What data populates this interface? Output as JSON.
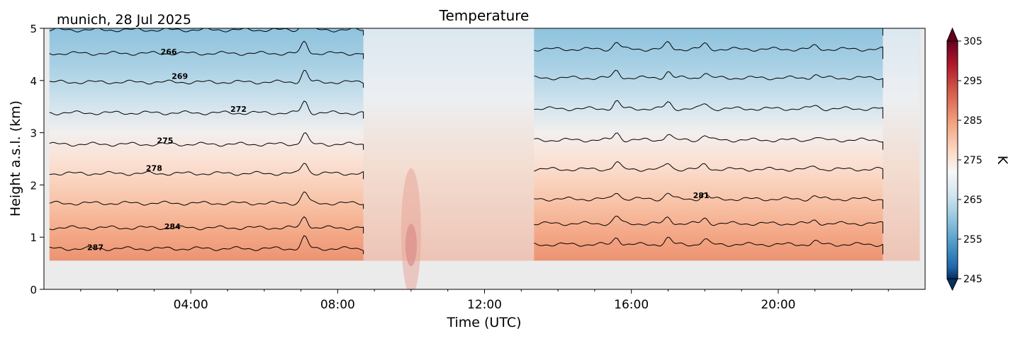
{
  "chart_data": {
    "type": "heatmap",
    "title": "Temperature",
    "subtitle": "munich, 28 Jul 2025",
    "xlabel": "Time (UTC)",
    "ylabel": "Height a.s.l. (km)",
    "x_ticks": [
      "04:00",
      "08:00",
      "12:00",
      "16:00",
      "20:00"
    ],
    "x_tick_hours": [
      4,
      8,
      12,
      16,
      20
    ],
    "xlim_hours": [
      0,
      24
    ],
    "y_ticks": [
      "0",
      "1",
      "2",
      "3",
      "4",
      "5"
    ],
    "ylim_km": [
      0,
      5
    ],
    "data_bottom_km": 0.55,
    "colorbar": {
      "label": "K",
      "ticks": [
        "305",
        "295",
        "285",
        "275",
        "265",
        "255",
        "245"
      ],
      "tick_values": [
        305,
        295,
        285,
        275,
        265,
        255,
        245
      ],
      "range": [
        245,
        305
      ],
      "extend": "both",
      "colormap": "RdBu_r"
    },
    "contour_labels": [
      {
        "value": "266",
        "hour": 3.4,
        "km": 4.5
      },
      {
        "value": "269",
        "hour": 3.7,
        "km": 4.03
      },
      {
        "value": "272",
        "hour": 5.3,
        "km": 3.4
      },
      {
        "value": "275",
        "hour": 3.3,
        "km": 2.8
      },
      {
        "value": "278",
        "hour": 3.0,
        "km": 2.27
      },
      {
        "value": "281",
        "hour": 17.9,
        "km": 1.75
      },
      {
        "value": "284",
        "hour": 3.5,
        "km": 1.15
      },
      {
        "value": "287",
        "hour": 1.4,
        "km": 0.75
      }
    ],
    "contour_levels": [
      {
        "value": 287,
        "km": 0.78
      },
      {
        "value": 284,
        "km": 1.18
      },
      {
        "value": 281,
        "km": 1.65
      },
      {
        "value": 278,
        "km": 2.22
      },
      {
        "value": 275,
        "km": 2.78
      },
      {
        "value": 272,
        "km": 3.38
      },
      {
        "value": 269,
        "km": 3.97
      },
      {
        "value": 266,
        "km": 4.52
      },
      {
        "value": 263,
        "km": 4.97
      }
    ],
    "masked_periods_hours": [
      [
        8.7,
        13.35
      ],
      [
        22.85,
        23.85
      ]
    ],
    "grid": false
  }
}
